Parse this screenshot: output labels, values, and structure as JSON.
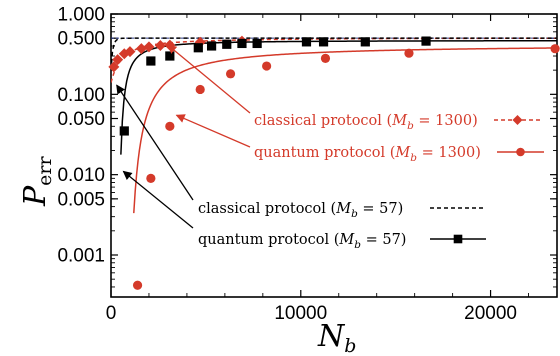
{
  "chart_data": {
    "type": "line",
    "title": "",
    "x_label_main": "N",
    "x_label_sub": "b",
    "y_label_main": "P",
    "y_label_sub": "err",
    "x_range": [
      0,
      23500
    ],
    "y_range": [
      0.0003,
      1.0
    ],
    "y_scale": "log",
    "x_ticks": [
      {
        "value": 0,
        "label": "0"
      },
      {
        "value": 10000,
        "label": "10000"
      },
      {
        "value": 20000,
        "label": "20000"
      }
    ],
    "y_ticks": [
      {
        "value": 1.0,
        "label": "1.000"
      },
      {
        "value": 0.5,
        "label": "0.500"
      },
      {
        "value": 0.1,
        "label": "0.100"
      },
      {
        "value": 0.05,
        "label": "0.050"
      },
      {
        "value": 0.01,
        "label": "0.010"
      },
      {
        "value": 0.005,
        "label": "0.005"
      },
      {
        "value": 0.001,
        "label": "0.001"
      }
    ],
    "colors": {
      "red": "#d43a2a",
      "black": "#000000",
      "asymptote": "#2b3a8f"
    },
    "series": [
      {
        "name": "classical protocol (Mb = 1300)",
        "color": "#d43a2a",
        "dash": "4,3",
        "marker": "diamond",
        "markers": [
          {
            "x": 150,
            "y": 0.22
          },
          {
            "x": 350,
            "y": 0.27
          },
          {
            "x": 700,
            "y": 0.32
          },
          {
            "x": 1000,
            "y": 0.34
          },
          {
            "x": 1600,
            "y": 0.37
          },
          {
            "x": 2000,
            "y": 0.39
          },
          {
            "x": 2600,
            "y": 0.405
          },
          {
            "x": 3100,
            "y": 0.41
          },
          {
            "x": 4700,
            "y": 0.445
          },
          {
            "x": 6900,
            "y": 0.46
          }
        ]
      },
      {
        "name": "quantum protocol (Mb = 1300)",
        "color": "#d43a2a",
        "dash": "",
        "marker": "circle",
        "markers": [
          {
            "x": 1400,
            "y": 0.00042
          },
          {
            "x": 2100,
            "y": 0.009
          },
          {
            "x": 3100,
            "y": 0.04
          },
          {
            "x": 4700,
            "y": 0.115
          },
          {
            "x": 6300,
            "y": 0.18
          },
          {
            "x": 8200,
            "y": 0.225
          },
          {
            "x": 11300,
            "y": 0.28
          },
          {
            "x": 15700,
            "y": 0.325
          },
          {
            "x": 23400,
            "y": 0.37
          }
        ]
      },
      {
        "name": "classical protocol (Mb = 57)",
        "color": "#000000",
        "dash": "4,3",
        "marker": "none",
        "markers": []
      },
      {
        "name": "quantum protocol (Mb = 57)",
        "color": "#000000",
        "dash": "",
        "marker": "square",
        "markers": [
          {
            "x": 700,
            "y": 0.035
          },
          {
            "x": 2100,
            "y": 0.26
          },
          {
            "x": 3100,
            "y": 0.3
          },
          {
            "x": 4600,
            "y": 0.38
          },
          {
            "x": 5300,
            "y": 0.4
          },
          {
            "x": 6100,
            "y": 0.42
          },
          {
            "x": 6900,
            "y": 0.43
          },
          {
            "x": 7700,
            "y": 0.43
          },
          {
            "x": 10300,
            "y": 0.45
          },
          {
            "x": 11200,
            "y": 0.45
          },
          {
            "x": 13400,
            "y": 0.45
          },
          {
            "x": 16600,
            "y": 0.46
          }
        ]
      }
    ],
    "annotations": [
      {
        "prefix": "classical protocol (",
        "var": "M",
        "sub": "b",
        "suffix": " = 1300)",
        "color": "#d43a2a"
      },
      {
        "prefix": "quantum protocol (",
        "var": "M",
        "sub": "b",
        "suffix": " = 1300)",
        "color": "#d43a2a"
      },
      {
        "prefix": "classical protocol (",
        "var": "M",
        "sub": "b",
        "suffix": " = 57)",
        "color": "#000000"
      },
      {
        "prefix": "quantum protocol (",
        "var": "M",
        "sub": "b",
        "suffix": " = 57)",
        "color": "#000000"
      }
    ],
    "grid": false,
    "legend": "annotations with arrows"
  }
}
